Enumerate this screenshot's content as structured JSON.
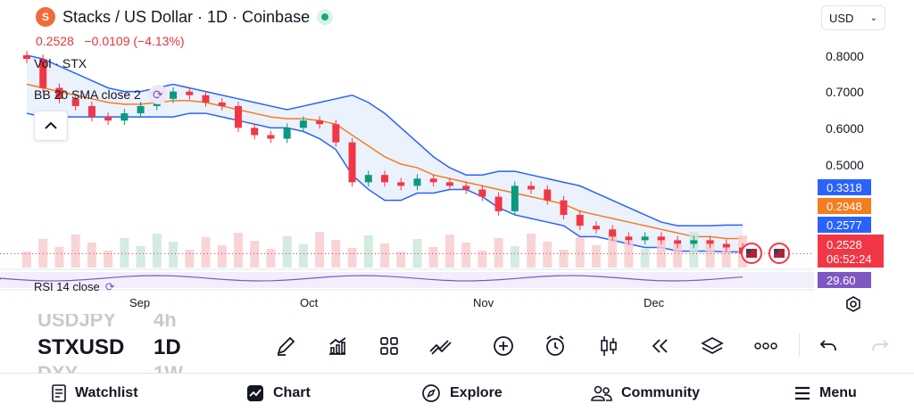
{
  "header": {
    "symbol_logo": "S",
    "title": "Stacks / US Dollar · 1D · Coinbase",
    "price": "0.2528",
    "change": "−0.0109 (−4.13%)",
    "currency": "USD"
  },
  "legend": {
    "volume": "Vol · STX",
    "bollinger": "BB 20 SMA close 2",
    "rsi": "RSI 14 close"
  },
  "price_axis": {
    "labels": [
      "0.8000",
      "0.7000",
      "0.6000",
      "0.5000"
    ],
    "tag_upper": "0.3318",
    "tag_middle": "0.2948",
    "tag_lower": "0.2577",
    "tag_last": "0.2528",
    "countdown": "06:52:24",
    "tag_rsi": "29.60",
    "colors": {
      "upper": "#2962ff",
      "middle": "#f57c1f",
      "lower": "#2962ff",
      "last": "#f23645",
      "rsi": "#7e57c2"
    }
  },
  "time_axis": {
    "labels": [
      "Sep",
      "Oct",
      "Nov",
      "Dec"
    ]
  },
  "watchlist_symbols": {
    "prev_symbol": "USDJPY",
    "prev_interval": "4h",
    "current_symbol": "STXUSD",
    "current_interval": "1D",
    "next_symbol": "DXY",
    "next_interval": "1W"
  },
  "toolbar": {
    "icons": [
      "draw-icon",
      "indicators-icon",
      "layout-icon",
      "compare-icon",
      "add-icon",
      "alert-icon",
      "candle-style-icon",
      "replay-icon",
      "layers-icon",
      "more-icon",
      "undo-icon",
      "redo-icon"
    ]
  },
  "bottom_nav": {
    "watchlist": "Watchlist",
    "chart": "Chart",
    "explore": "Explore",
    "community": "Community",
    "menu": "Menu"
  },
  "chart_data": {
    "type": "line",
    "ylim": [
      0.22,
      0.85
    ],
    "x_tick_labels": [
      "Sep",
      "Oct",
      "Nov",
      "Dec"
    ],
    "series": [
      {
        "values": [
          0.79,
          0.71,
          0.68,
          0.66,
          0.63,
          0.62,
          0.64,
          0.66,
          0.68,
          0.7,
          0.69,
          0.67,
          0.66,
          0.6,
          0.58,
          0.57,
          0.6,
          0.62,
          0.61,
          0.56,
          0.45,
          0.47,
          0.45,
          0.44,
          0.46,
          0.45,
          0.44,
          0.43,
          0.41,
          0.37,
          0.44,
          0.43,
          0.4,
          0.36,
          0.33,
          0.32,
          0.3,
          0.29,
          0.3,
          0.29,
          0.28,
          0.29,
          0.28,
          0.27,
          0.2528
        ]
      },
      {
        "name": "BB upper",
        "values": [
          0.8,
          0.79,
          0.77,
          0.75,
          0.73,
          0.71,
          0.7,
          0.7,
          0.71,
          0.72,
          0.71,
          0.7,
          0.69,
          0.68,
          0.67,
          0.66,
          0.65,
          0.66,
          0.67,
          0.68,
          0.69,
          0.67,
          0.64,
          0.6,
          0.56,
          0.52,
          0.49,
          0.47,
          0.47,
          0.48,
          0.48,
          0.47,
          0.46,
          0.45,
          0.44,
          0.42,
          0.4,
          0.38,
          0.36,
          0.34,
          0.33,
          0.33,
          0.33,
          0.3318,
          0.3318
        ]
      },
      {
        "name": "BB basis",
        "values": [
          0.72,
          0.71,
          0.7,
          0.69,
          0.68,
          0.67,
          0.665,
          0.665,
          0.67,
          0.675,
          0.675,
          0.67,
          0.66,
          0.65,
          0.64,
          0.63,
          0.625,
          0.625,
          0.62,
          0.61,
          0.58,
          0.55,
          0.52,
          0.5,
          0.49,
          0.47,
          0.46,
          0.45,
          0.44,
          0.43,
          0.42,
          0.41,
          0.4,
          0.39,
          0.37,
          0.36,
          0.35,
          0.34,
          0.33,
          0.32,
          0.31,
          0.3,
          0.3,
          0.2948,
          0.2948
        ]
      },
      {
        "name": "BB lower",
        "values": [
          0.64,
          0.63,
          0.63,
          0.63,
          0.63,
          0.63,
          0.63,
          0.63,
          0.63,
          0.63,
          0.64,
          0.64,
          0.63,
          0.62,
          0.61,
          0.6,
          0.6,
          0.59,
          0.57,
          0.54,
          0.47,
          0.43,
          0.4,
          0.4,
          0.42,
          0.42,
          0.43,
          0.43,
          0.41,
          0.38,
          0.36,
          0.35,
          0.34,
          0.33,
          0.3,
          0.3,
          0.29,
          0.28,
          0.27,
          0.27,
          0.26,
          0.26,
          0.26,
          0.2577,
          0.2577
        ]
      }
    ]
  }
}
